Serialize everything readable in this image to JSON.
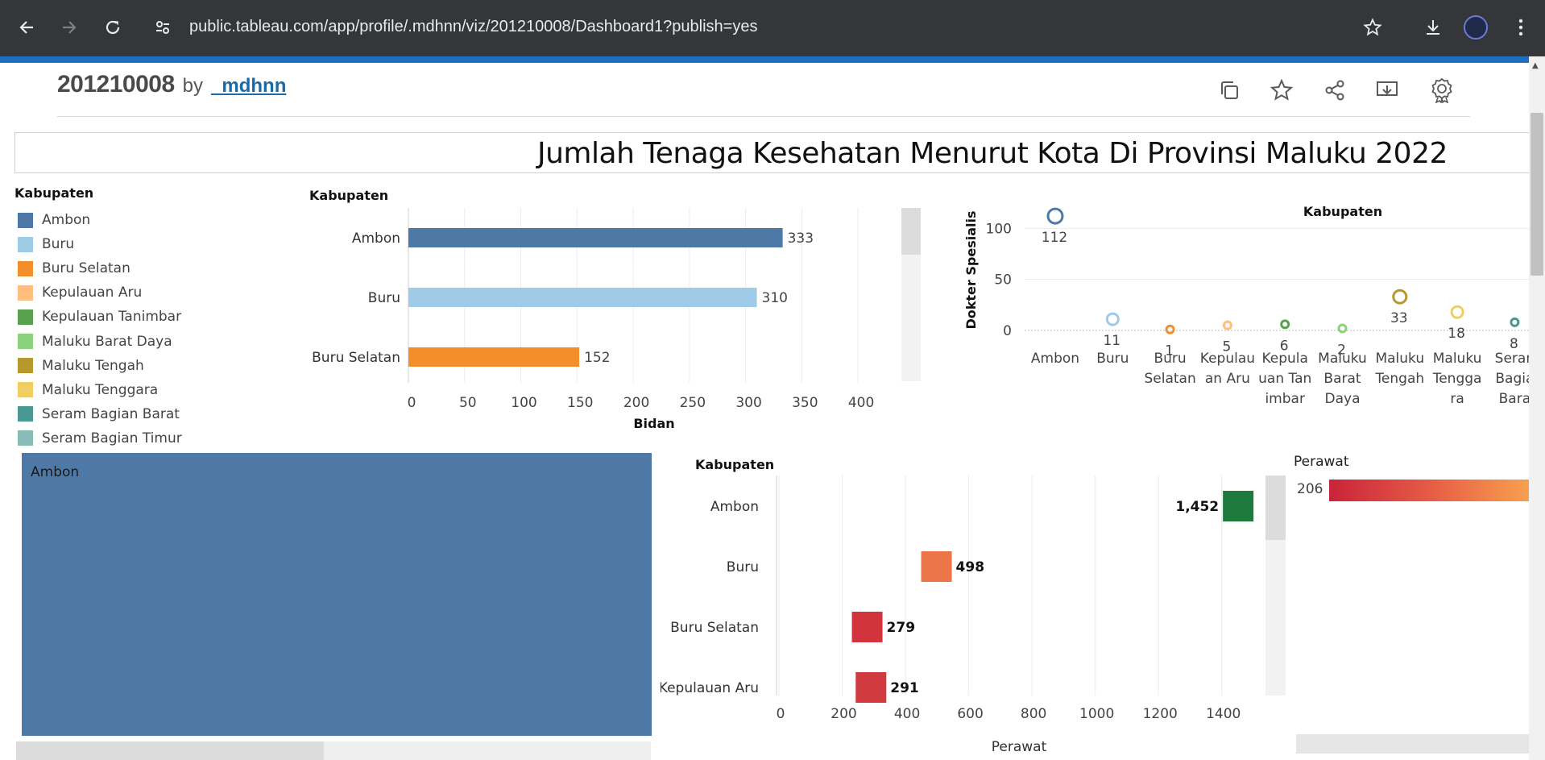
{
  "browser": {
    "url": "public.tableau.com/app/profile/.mdhnn/viz/201210008/Dashboard1?publish=yes"
  },
  "viz": {
    "title": "201210008",
    "by": "by",
    "author": "_mdhnn"
  },
  "dashboard": {
    "title": "Jumlah Tenaga Kesehatan Menurut Kota Di Provinsi Maluku 2022"
  },
  "legend": {
    "title": "Kabupaten",
    "items": [
      {
        "label": "Ambon",
        "color": "#4e79a7"
      },
      {
        "label": "Buru",
        "color": "#a0cbe8"
      },
      {
        "label": "Buru Selatan",
        "color": "#f28e2b"
      },
      {
        "label": "Kepulauan Aru",
        "color": "#ffbe7d"
      },
      {
        "label": "Kepulauan Tanimbar",
        "color": "#59a14f"
      },
      {
        "label": "Maluku Barat Daya",
        "color": "#8cd17d"
      },
      {
        "label": "Maluku Tengah",
        "color": "#b6992d"
      },
      {
        "label": "Maluku Tenggara",
        "color": "#f1ce63"
      },
      {
        "label": "Seram Bagian Barat",
        "color": "#499894"
      },
      {
        "label": "Seram Bagian Timur",
        "color": "#86bcb6"
      }
    ]
  },
  "treemap": {
    "label": "Ambon"
  },
  "perawat_legend": {
    "title": "Perawat",
    "min_label": "206"
  },
  "chart_data": [
    {
      "id": "bidan",
      "type": "bar",
      "orientation": "horizontal",
      "row_header": "Kabupaten",
      "xlabel": "Bidan",
      "xlim": [
        0,
        420
      ],
      "xticks": [
        0,
        50,
        100,
        150,
        200,
        250,
        300,
        350,
        400
      ],
      "categories": [
        "Ambon",
        "Buru",
        "Buru Selatan"
      ],
      "values": [
        333,
        310,
        152
      ],
      "colors": [
        "#4e79a7",
        "#a0cbe8",
        "#f28e2b"
      ]
    },
    {
      "id": "dokter",
      "type": "scatter",
      "title": "Kabupaten",
      "ylabel": "Dokter Spesialis",
      "ylim": [
        0,
        120
      ],
      "yticks": [
        0,
        50,
        100
      ],
      "categories": [
        [
          "Ambon"
        ],
        [
          "Buru"
        ],
        [
          "Buru",
          "Selatan"
        ],
        [
          "Kepulau",
          "an Aru"
        ],
        [
          "Kepula",
          "uan Tan",
          "imbar"
        ],
        [
          "Maluku",
          "Barat",
          "Daya"
        ],
        [
          "Maluku",
          "Tengah"
        ],
        [
          "Maluku",
          "Tengga",
          "ra"
        ],
        [
          "Seran",
          "Bagia",
          "Bara"
        ]
      ],
      "values": [
        112,
        11,
        1,
        5,
        6,
        2,
        33,
        18,
        8
      ],
      "labels": [
        "112",
        "11",
        "1",
        "5",
        "6",
        "2",
        "33",
        "18",
        "8"
      ],
      "colors": [
        "#4e79a7",
        "#a0cbe8",
        "#f28e2b",
        "#ffbe7d",
        "#59a14f",
        "#8cd17d",
        "#b6992d",
        "#f1ce63",
        "#499894"
      ]
    },
    {
      "id": "perawat",
      "type": "bar",
      "orientation": "horizontal",
      "row_header": "Kabupaten",
      "xlabel": "Perawat",
      "xlim": [
        0,
        1500
      ],
      "xticks": [
        0,
        200,
        400,
        600,
        800,
        1000,
        1200,
        1400
      ],
      "categories": [
        "Ambon",
        "Buru",
        "Buru Selatan",
        "Kepulauan Aru"
      ],
      "values": [
        1452,
        498,
        279,
        291
      ],
      "labels": [
        "1,452",
        "498",
        "279",
        "291"
      ],
      "colors": [
        "#1f7a3e",
        "#ec7449",
        "#d1343c",
        "#d13a3e"
      ]
    }
  ]
}
